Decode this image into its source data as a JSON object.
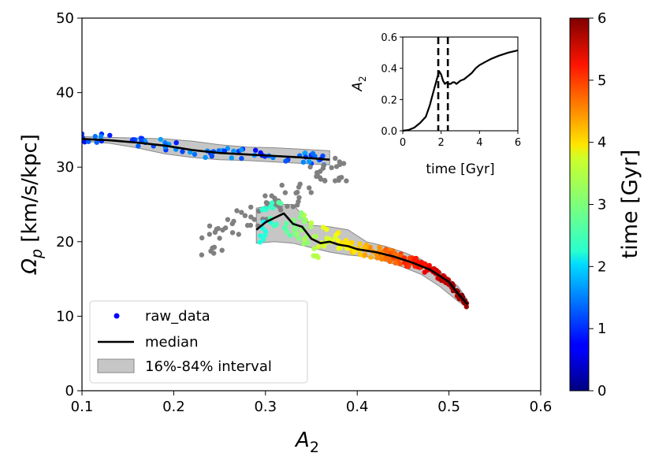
{
  "chart_data": {
    "type": "scatter",
    "main": {
      "xlabel": "A",
      "xlabel_sub": "2",
      "ylabel": "Ω",
      "ylabel_sub": "p",
      "ylabel_rest": " [km/s/kpc]",
      "xlim": [
        0.1,
        0.6
      ],
      "ylim": [
        0,
        50
      ],
      "xticks": [
        "0.1",
        "0.2",
        "0.3",
        "0.4",
        "0.5",
        "0.6"
      ],
      "yticks": [
        "0",
        "10",
        "20",
        "30",
        "40",
        "50"
      ],
      "median": {
        "x": [
          0.1,
          0.13,
          0.16,
          0.19,
          0.22,
          0.25,
          0.28,
          0.31,
          0.34,
          0.37
        ],
        "y": [
          33.8,
          33.6,
          33.3,
          32.9,
          32.3,
          31.9,
          31.7,
          31.5,
          31.3,
          31.0
        ]
      },
      "median2": {
        "x": [
          0.29,
          0.3,
          0.31,
          0.32,
          0.33,
          0.34,
          0.35,
          0.36,
          0.37,
          0.38,
          0.39,
          0.4,
          0.42,
          0.44,
          0.46,
          0.48,
          0.5,
          0.51,
          0.52
        ],
        "y": [
          21.6,
          22.6,
          23.2,
          23.8,
          22.4,
          22.0,
          20.4,
          19.8,
          20.0,
          19.6,
          19.4,
          19.0,
          18.6,
          18.0,
          17.2,
          16.2,
          14.6,
          13.0,
          11.6
        ]
      },
      "band_upper": {
        "x": [
          0.1,
          0.13,
          0.16,
          0.19,
          0.22,
          0.25,
          0.28,
          0.31,
          0.34,
          0.37
        ],
        "y": [
          34.1,
          34.0,
          33.9,
          33.8,
          33.5,
          33.0,
          32.7,
          32.6,
          32.4,
          32.2
        ]
      },
      "band_lower": {
        "x": [
          0.1,
          0.13,
          0.16,
          0.19,
          0.22,
          0.25,
          0.28,
          0.31,
          0.34,
          0.37
        ],
        "y": [
          33.5,
          33.2,
          32.6,
          31.8,
          31.3,
          31.0,
          30.9,
          30.7,
          30.5,
          30.3
        ]
      },
      "band2_upper": {
        "x": [
          0.29,
          0.31,
          0.33,
          0.35,
          0.37,
          0.39,
          0.41,
          0.43,
          0.45,
          0.47,
          0.49,
          0.51,
          0.52
        ],
        "y": [
          24.5,
          25.0,
          25.0,
          22.2,
          22.0,
          21.6,
          20.0,
          19.4,
          18.6,
          17.6,
          16.0,
          14.0,
          12.2
        ]
      },
      "band2_lower": {
        "x": [
          0.29,
          0.31,
          0.33,
          0.35,
          0.37,
          0.39,
          0.41,
          0.43,
          0.45,
          0.47,
          0.49,
          0.51,
          0.52
        ],
        "y": [
          19.8,
          20.0,
          19.8,
          19.2,
          18.6,
          18.2,
          18.0,
          17.4,
          16.6,
          15.6,
          14.0,
          12.0,
          11.2
        ]
      },
      "legend": {
        "position": "lower-left",
        "items": [
          "raw_data",
          "median",
          "16%-84% interval"
        ]
      }
    },
    "inset": {
      "xlabel": "time [Gyr]",
      "ylabel": "A",
      "ylabel_sub": "2",
      "xlim": [
        0,
        6
      ],
      "ylim": [
        0,
        0.6
      ],
      "xticks": [
        "0",
        "2",
        "4",
        "6"
      ],
      "yticks": [
        "0.0",
        "0.2",
        "0.4",
        "0.6"
      ],
      "curve": {
        "x": [
          0,
          0.3,
          0.6,
          0.9,
          1.2,
          1.4,
          1.6,
          1.8,
          1.9,
          2.0,
          2.1,
          2.2,
          2.3,
          2.4,
          2.5,
          2.6,
          2.7,
          2.8,
          2.9,
          3.0,
          3.2,
          3.4,
          3.6,
          3.8,
          4.0,
          4.3,
          4.6,
          5.0,
          5.5,
          6.0
        ],
        "y": [
          0,
          0.005,
          0.02,
          0.05,
          0.09,
          0.16,
          0.25,
          0.34,
          0.38,
          0.36,
          0.32,
          0.3,
          0.31,
          0.3,
          0.3,
          0.31,
          0.31,
          0.3,
          0.31,
          0.32,
          0.33,
          0.35,
          0.37,
          0.4,
          0.42,
          0.44,
          0.46,
          0.48,
          0.5,
          0.515
        ]
      },
      "vlines": [
        1.85,
        2.35
      ]
    },
    "colorbar": {
      "label": "time [Gyr]",
      "range": [
        0,
        6
      ],
      "ticks": [
        "0",
        "1",
        "2",
        "3",
        "4",
        "5",
        "6"
      ],
      "colormap": "jet"
    },
    "colors": {
      "outlier": "#808080",
      "median": "#000000",
      "band_fill": "#a8a8a8",
      "legend_dot": "#0000ff"
    }
  }
}
